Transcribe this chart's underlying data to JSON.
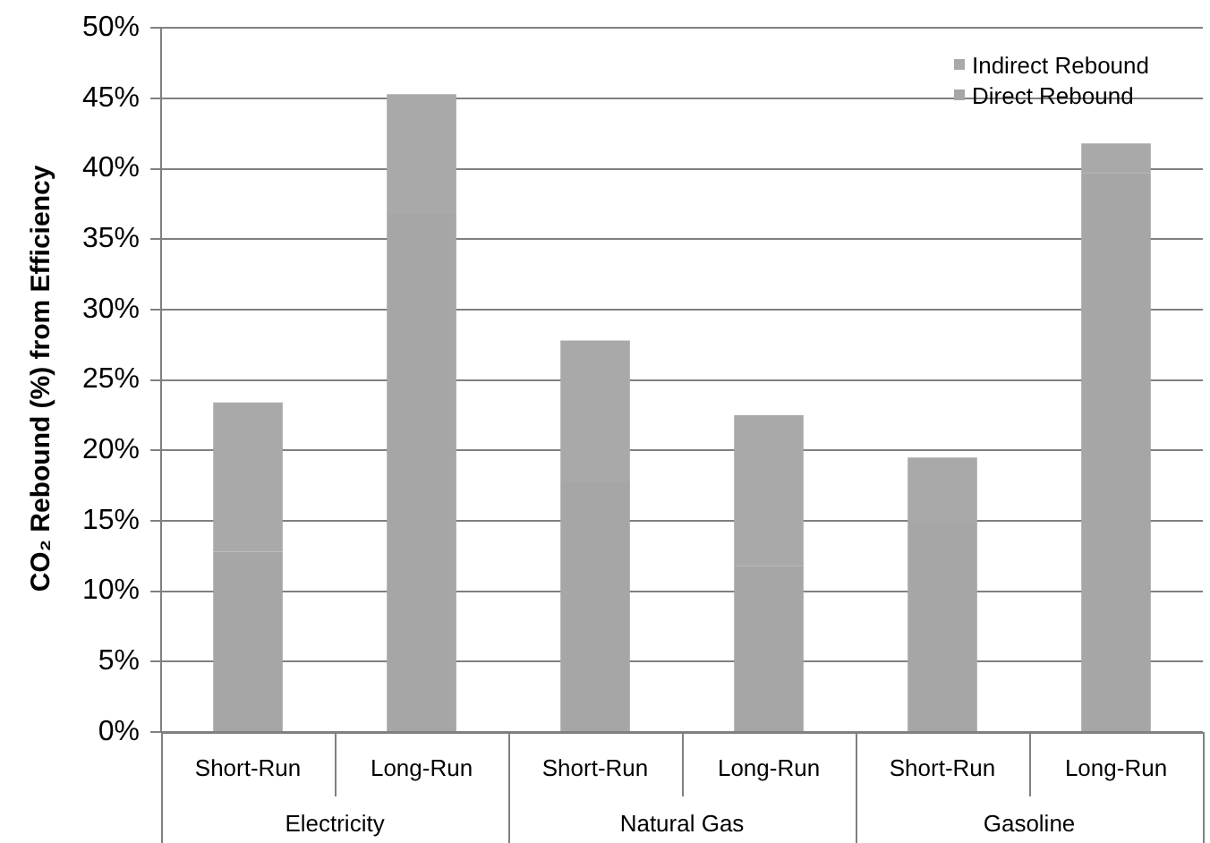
{
  "chart_data": {
    "type": "bar",
    "stacked": true,
    "ylabel": "CO₂ Rebound (%) from Efficiency",
    "categories": [
      "Short-Run",
      "Long-Run",
      "Short-Run",
      "Long-Run",
      "Short-Run",
      "Long-Run"
    ],
    "annotations": [
      "Electricity",
      "Natural Gas",
      "Gasoline"
    ],
    "series": [
      {
        "name": "Direct Rebound",
        "color": "#a6a6a6",
        "values": [
          12.8,
          36.8,
          17.8,
          11.8,
          15.0,
          39.7
        ]
      },
      {
        "name": "Indirect Rebound",
        "color": "#a9a9a9",
        "values": [
          10.6,
          8.5,
          10.0,
          10.7,
          4.5,
          2.1
        ]
      }
    ],
    "ylim": [
      0,
      50
    ],
    "yticks": [
      {
        "value": 0,
        "label": "0%"
      },
      {
        "value": 5,
        "label": "5%"
      },
      {
        "value": 10,
        "label": "10%"
      },
      {
        "value": 15,
        "label": "15%"
      },
      {
        "value": 20,
        "label": "20%"
      },
      {
        "value": 25,
        "label": "25%"
      },
      {
        "value": 30,
        "label": "30%"
      },
      {
        "value": 35,
        "label": "35%"
      },
      {
        "value": 40,
        "label": "40%"
      },
      {
        "value": 45,
        "label": "45%"
      },
      {
        "value": 50,
        "label": "50%"
      }
    ],
    "grid": "y",
    "legend": "top right"
  }
}
